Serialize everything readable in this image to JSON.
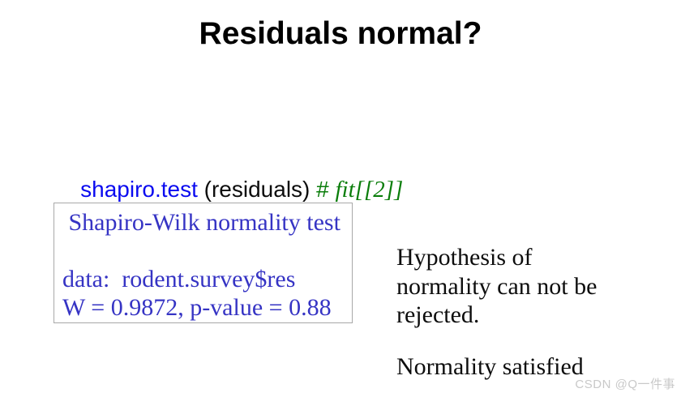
{
  "slide": {
    "title": "Residuals normal?",
    "code": {
      "function_name": "shapiro.test",
      "args": " (residuals) ",
      "comment_hash": "# ",
      "comment_text": "fit[[2]]"
    },
    "output_box": {
      "lines": [
        " Shapiro-Wilk normality test",
        "",
        "data:  rodent.survey$res",
        "W = 0.9872, p-value = 0.88"
      ]
    },
    "annotation": {
      "lines": [
        "Hypothesis of",
        "normality can not be",
        "rejected."
      ]
    },
    "conclusion": "Normality satisfied",
    "watermark": "CSDN @Q一件事"
  },
  "colors": {
    "title_black": "#000000",
    "code_blue": "#0b0bf0",
    "comment_green": "#0a7d0a",
    "output_blue": "#3634c4",
    "box_border_gray": "#a8a8a8",
    "body_black": "#0d0d0d",
    "watermark_gray": "#c9c9c9",
    "background": "#ffffff"
  }
}
